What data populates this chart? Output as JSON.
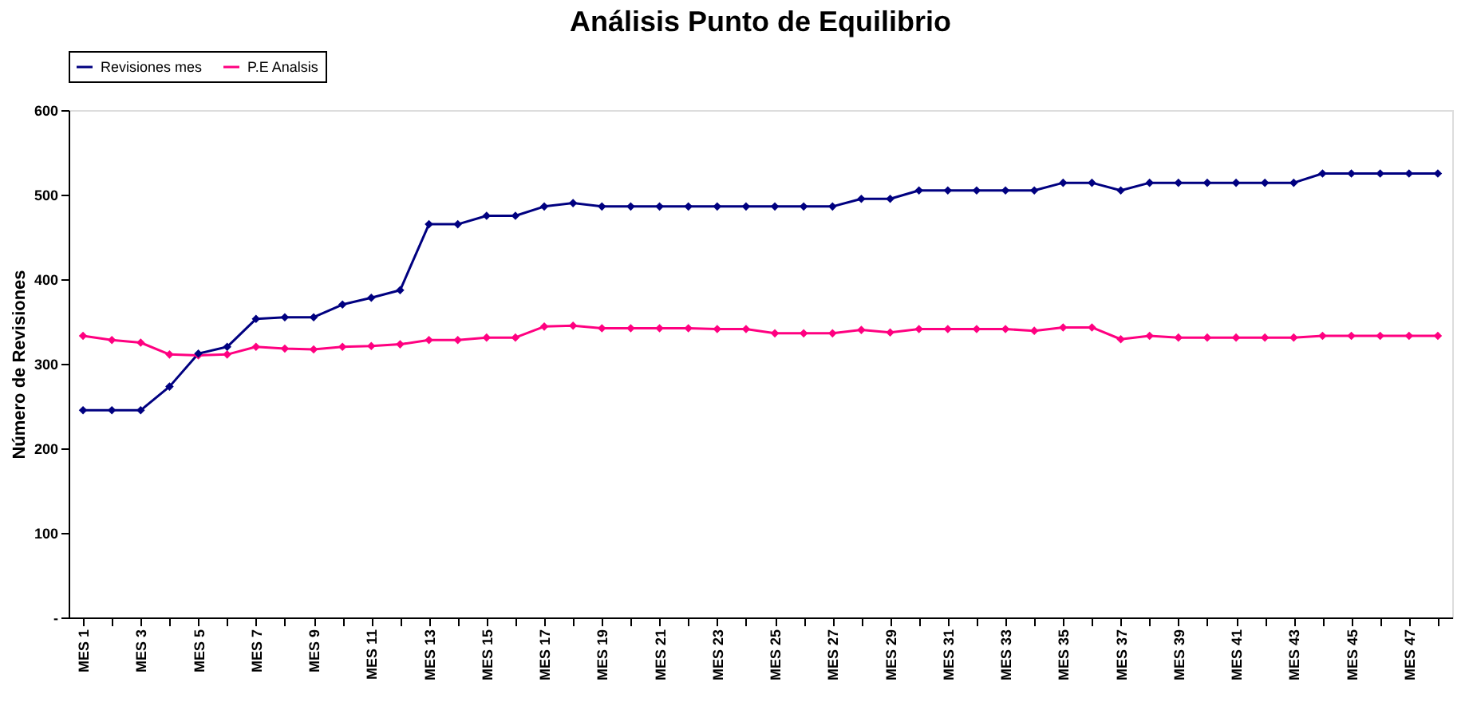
{
  "chart_data": {
    "type": "line",
    "title": "Análisis Punto de Equilibrio",
    "ylabel": "Número de Revisiones",
    "categories": [
      "MES 1",
      null,
      "MES 3",
      null,
      "MES 5",
      null,
      "MES 7",
      null,
      "MES 9",
      null,
      "MES 11",
      null,
      "MES 13",
      null,
      "MES 15",
      null,
      "MES 17",
      null,
      "MES 19",
      null,
      "MES 21",
      null,
      "MES 23",
      null,
      "MES 25",
      null,
      "MES 27",
      null,
      "MES 29",
      null,
      "MES 31",
      null,
      "MES 33",
      null,
      "MES 35",
      null,
      "MES 37",
      null,
      "MES 39",
      null,
      "MES 41",
      null,
      "MES 43",
      null,
      "MES 45",
      null,
      "MES 47",
      null
    ],
    "series": [
      {
        "name": "Revisiones mes",
        "color": "#000080",
        "values": [
          245,
          245,
          245,
          273,
          312,
          320,
          353,
          355,
          355,
          370,
          378,
          387,
          465,
          465,
          475,
          475,
          486,
          490,
          486,
          486,
          486,
          486,
          486,
          486,
          486,
          486,
          486,
          495,
          495,
          505,
          505,
          505,
          505,
          505,
          514,
          514,
          505,
          514,
          514,
          514,
          514,
          514,
          514,
          525,
          525,
          525,
          525,
          525
        ]
      },
      {
        "name": "P.E Analsis",
        "color": "#ff0080",
        "values": [
          333,
          328,
          325,
          311,
          310,
          311,
          320,
          318,
          317,
          320,
          321,
          323,
          328,
          328,
          331,
          331,
          344,
          345,
          342,
          342,
          342,
          342,
          341,
          341,
          336,
          336,
          336,
          340,
          337,
          341,
          341,
          341,
          341,
          339,
          343,
          343,
          329,
          333,
          331,
          331,
          331,
          331,
          331,
          333,
          333,
          333,
          333,
          333
        ]
      }
    ],
    "ylim": [
      0,
      600
    ],
    "yticks": [
      {
        "value": 0,
        "label": "-"
      },
      100,
      200,
      300,
      400,
      500,
      600
    ],
    "legend": "top",
    "grid": false,
    "marker": "diamond",
    "line_style": "solid"
  }
}
